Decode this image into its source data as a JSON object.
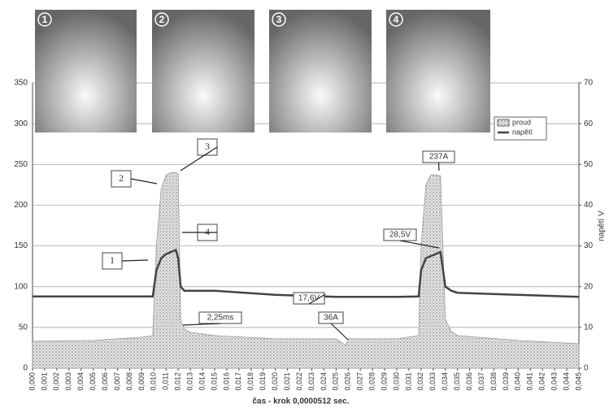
{
  "chart_data": {
    "type": "line",
    "photo_labels": [
      "1",
      "2",
      "3",
      "4"
    ],
    "xlabel": "čas - krok 0,0000512 sec.",
    "y2label": "napětí V",
    "x": [
      0,
      0.005,
      0.009,
      0.0099,
      0.0102,
      0.0106,
      0.011,
      0.0114,
      0.0118,
      0.012,
      0.0122,
      0.0125,
      0.013,
      0.015,
      0.02,
      0.025,
      0.0258,
      0.026,
      0.03,
      0.0318,
      0.032,
      0.0324,
      0.0328,
      0.0332,
      0.0336,
      0.034,
      0.0345,
      0.035,
      0.04,
      0.045
    ],
    "series": [
      {
        "name": "proud",
        "color": "#9a9a9a",
        "values": [
          33,
          34,
          38,
          40,
          150,
          220,
          237,
          240,
          240,
          238,
          60,
          48,
          44,
          40,
          36,
          36,
          28,
          36,
          36,
          40,
          150,
          225,
          237,
          237,
          236,
          60,
          45,
          40,
          34,
          30
        ]
      },
      {
        "name": "napětí",
        "color": "#444444",
        "axis": "y2",
        "values": [
          17.6,
          17.6,
          17.6,
          17.6,
          24,
          27,
          28,
          28.5,
          29,
          27,
          20,
          19,
          19,
          19,
          18,
          17.5,
          17.5,
          17.5,
          17.5,
          17.6,
          24,
          27,
          27.5,
          28,
          28.5,
          20,
          19,
          18.5,
          18,
          17.5
        ]
      }
    ],
    "annotations": [
      "237A",
      "28,5V",
      "17,6V",
      "2,25ms",
      "36A",
      "1",
      "2",
      "3",
      "4"
    ],
    "xlim": [
      0,
      0.045
    ],
    "ylim": [
      0,
      350
    ],
    "y2lim": [
      0,
      70
    ],
    "yticks": [
      0,
      50,
      100,
      150,
      200,
      250,
      300,
      350
    ],
    "y2ticks": [
      0,
      10,
      20,
      30,
      40,
      50,
      60,
      70
    ],
    "xticks": [
      {
        "value": 0,
        "label": "0,000"
      },
      {
        "value": 0.001,
        "label": "0,001"
      },
      {
        "value": 0.002,
        "label": "0,002"
      },
      {
        "value": 0.003,
        "label": "0,003"
      },
      {
        "value": 0.004,
        "label": "0,004"
      },
      {
        "value": 0.005,
        "label": "0,005"
      },
      {
        "value": 0.006,
        "label": "0,006"
      },
      {
        "value": 0.007,
        "label": "0,007"
      },
      {
        "value": 0.008,
        "label": "0,008"
      },
      {
        "value": 0.009,
        "label": "0,009"
      },
      {
        "value": 0.01,
        "label": "0,010"
      },
      {
        "value": 0.011,
        "label": "0,011"
      },
      {
        "value": 0.012,
        "label": "0,012"
      },
      {
        "value": 0.013,
        "label": "0,013"
      },
      {
        "value": 0.014,
        "label": "0,014"
      },
      {
        "value": 0.015,
        "label": "0,015"
      },
      {
        "value": 0.016,
        "label": "0,016"
      },
      {
        "value": 0.017,
        "label": "0,017"
      },
      {
        "value": 0.018,
        "label": "0,018"
      },
      {
        "value": 0.019,
        "label": "0,019"
      },
      {
        "value": 0.02,
        "label": "0,020"
      },
      {
        "value": 0.021,
        "label": "0,021"
      },
      {
        "value": 0.022,
        "label": "0,022"
      },
      {
        "value": 0.023,
        "label": "0,023"
      },
      {
        "value": 0.024,
        "label": "0,024"
      },
      {
        "value": 0.025,
        "label": "0,025"
      },
      {
        "value": 0.026,
        "label": "0,026"
      },
      {
        "value": 0.027,
        "label": "0,027"
      },
      {
        "value": 0.028,
        "label": "0,028"
      },
      {
        "value": 0.029,
        "label": "0,029"
      },
      {
        "value": 0.03,
        "label": "0,030"
      },
      {
        "value": 0.031,
        "label": "0,031"
      },
      {
        "value": 0.032,
        "label": "0,032"
      },
      {
        "value": 0.033,
        "label": "0,033"
      },
      {
        "value": 0.034,
        "label": "0,034"
      },
      {
        "value": 0.035,
        "label": "0,035"
      },
      {
        "value": 0.036,
        "label": "0,036"
      },
      {
        "value": 0.037,
        "label": "0,037"
      },
      {
        "value": 0.038,
        "label": "0,038"
      },
      {
        "value": 0.039,
        "label": "0,039"
      },
      {
        "value": 0.04,
        "label": "0,040"
      },
      {
        "value": 0.041,
        "label": "0,041"
      },
      {
        "value": 0.042,
        "label": "0,042"
      },
      {
        "value": 0.043,
        "label": "0,043"
      },
      {
        "value": 0.044,
        "label": "0,044"
      },
      {
        "value": 0.045,
        "label": "0,045"
      }
    ],
    "grid": true,
    "legend": "upper right"
  }
}
